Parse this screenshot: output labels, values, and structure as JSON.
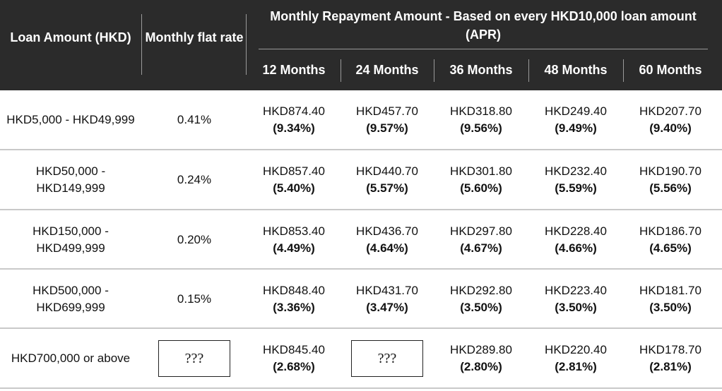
{
  "header": {
    "loan_amount": "Loan Amount (HKD)",
    "monthly_flat_rate": "Monthly flat rate",
    "monthly_repayment": "Monthly Repayment Amount - Based on every HKD10,000 loan amount (APR)",
    "months": [
      "12 Months",
      "24 Months",
      "36 Months",
      "48 Months",
      "60 Months"
    ]
  },
  "rows": [
    {
      "loan": "HKD5,000 - HKD49,999",
      "flat": "0.41%",
      "values": [
        {
          "amount": "HKD874.40",
          "apr": "(9.34%)"
        },
        {
          "amount": "HKD457.70",
          "apr": "(9.57%)"
        },
        {
          "amount": "HKD318.80",
          "apr": "(9.56%)"
        },
        {
          "amount": "HKD249.40",
          "apr": "(9.49%)"
        },
        {
          "amount": "HKD207.70",
          "apr": "(9.40%)"
        }
      ]
    },
    {
      "loan": "HKD50,000 - HKD149,999",
      "flat": "0.24%",
      "values": [
        {
          "amount": "HKD857.40",
          "apr": "(5.40%)"
        },
        {
          "amount": "HKD440.70",
          "apr": "(5.57%)"
        },
        {
          "amount": "HKD301.80",
          "apr": "(5.60%)"
        },
        {
          "amount": "HKD232.40",
          "apr": "(5.59%)"
        },
        {
          "amount": "HKD190.70",
          "apr": "(5.56%)"
        }
      ]
    },
    {
      "loan": "HKD150,000 - HKD499,999",
      "flat": "0.20%",
      "values": [
        {
          "amount": "HKD853.40",
          "apr": "(4.49%)"
        },
        {
          "amount": "HKD436.70",
          "apr": "(4.64%)"
        },
        {
          "amount": "HKD297.80",
          "apr": "(4.67%)"
        },
        {
          "amount": "HKD228.40",
          "apr": "(4.66%)"
        },
        {
          "amount": "HKD186.70",
          "apr": "(4.65%)"
        }
      ]
    },
    {
      "loan": "HKD500,000 - HKD699,999",
      "flat": "0.15%",
      "values": [
        {
          "amount": "HKD848.40",
          "apr": "(3.36%)"
        },
        {
          "amount": "HKD431.70",
          "apr": "(3.47%)"
        },
        {
          "amount": "HKD292.80",
          "apr": "(3.50%)"
        },
        {
          "amount": "HKD223.40",
          "apr": "(3.50%)"
        },
        {
          "amount": "HKD181.70",
          "apr": "(3.50%)"
        }
      ]
    },
    {
      "loan": "HKD700,000 or above",
      "flat_box": "???",
      "values": [
        {
          "amount": "HKD845.40",
          "apr": "(2.68%)"
        },
        {
          "box": "???"
        },
        {
          "amount": "HKD289.80",
          "apr": "(2.80%)"
        },
        {
          "amount": "HKD220.40",
          "apr": "(2.81%)"
        },
        {
          "amount": "HKD178.70",
          "apr": "(2.81%)"
        }
      ]
    }
  ]
}
